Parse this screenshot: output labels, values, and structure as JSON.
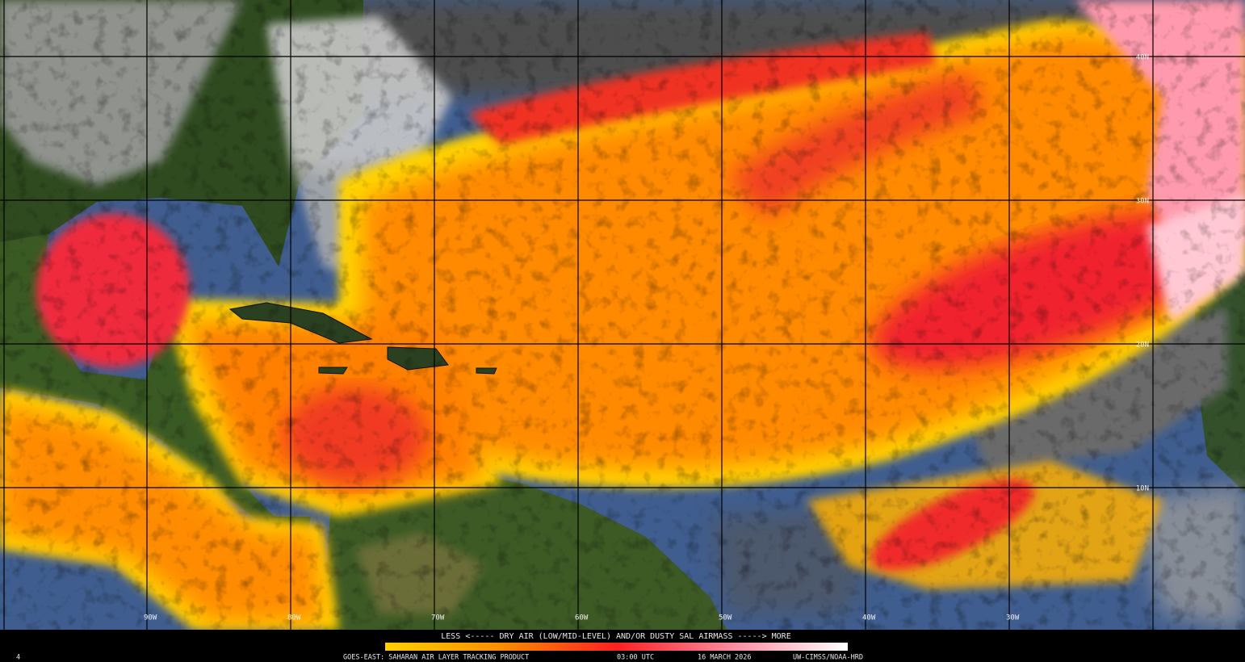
{
  "map": {
    "latitude_labels": [
      "40N",
      "30N",
      "20N",
      "10N"
    ],
    "longitude_labels": [
      "90W",
      "80W",
      "70W",
      "60W",
      "50W",
      "40W",
      "30W"
    ],
    "legend": "LESS <----- DRY AIR (LOW/MID-LEVEL) AND/OR DUSTY SAL AIRMASS -----> MORE"
  },
  "footer": {
    "frame": "4",
    "product": "GOES-EAST: SAHARAN AIR LAYER TRACKING PRODUCT",
    "time": "03:00 UTC",
    "date": "16 MARCH 2026",
    "source": "UW-CIMSS/NOAA-HRD"
  }
}
